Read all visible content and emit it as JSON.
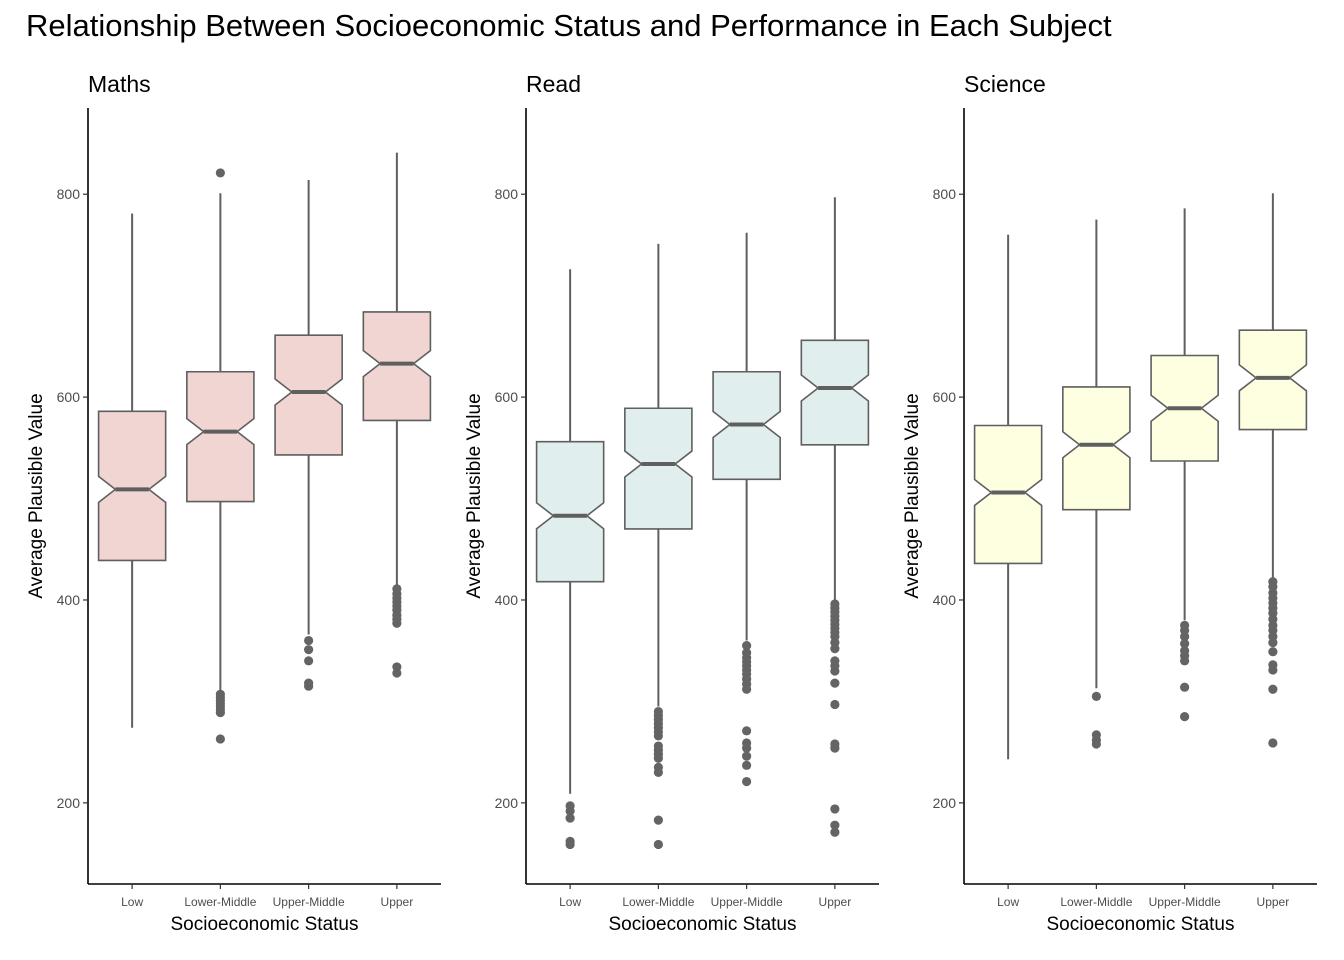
{
  "title": "Relationship Between Socioeconomic Status and Performance in Each Subject",
  "chart_data": [
    {
      "type": "boxplot",
      "panel_title": "Maths",
      "xlabel": "Socioeconomic Status",
      "ylabel": "Average Plausible Value",
      "categories": [
        "Low",
        "Lower-Middle",
        "Upper-Middle",
        "Upper"
      ],
      "ylim": [
        120,
        885
      ],
      "yticks": [
        200,
        400,
        600,
        800
      ],
      "notched": true,
      "fill_color": "#f0d5d3",
      "grid": false,
      "boxes": [
        {
          "category": "Low",
          "whisker_low": 274,
          "q1": 439,
          "median": 509,
          "q3": 586,
          "whisker_high": 781,
          "outliers": []
        },
        {
          "category": "Lower-Middle",
          "whisker_low": 309,
          "q1": 497,
          "median": 566,
          "q3": 625,
          "whisker_high": 801,
          "outliers": [
            821,
            307,
            304,
            301,
            298,
            295,
            292,
            289,
            263
          ]
        },
        {
          "category": "Upper-Middle",
          "whisker_low": 366,
          "q1": 543,
          "median": 605,
          "q3": 661,
          "whisker_high": 814,
          "outliers": [
            360,
            351,
            340,
            318,
            315
          ]
        },
        {
          "category": "Upper",
          "whisker_low": 415,
          "q1": 577,
          "median": 633,
          "q3": 684,
          "whisker_high": 841,
          "outliers": [
            411,
            406,
            402,
            398,
            394,
            390,
            385,
            381,
            377,
            334,
            328
          ]
        }
      ]
    },
    {
      "type": "boxplot",
      "panel_title": "Read",
      "xlabel": "Socioeconomic Status",
      "ylabel": "Average Plausible Value",
      "categories": [
        "Low",
        "Lower-Middle",
        "Upper-Middle",
        "Upper"
      ],
      "ylim": [
        120,
        885
      ],
      "yticks": [
        200,
        400,
        600,
        800
      ],
      "notched": true,
      "fill_color": "#e0eeee",
      "grid": false,
      "boxes": [
        {
          "category": "Low",
          "whisker_low": 209,
          "q1": 418,
          "median": 483,
          "q3": 556,
          "whisker_high": 726,
          "outliers": [
            197,
            192,
            185,
            162,
            159
          ]
        },
        {
          "category": "Lower-Middle",
          "whisker_low": 295,
          "q1": 470,
          "median": 534,
          "q3": 589,
          "whisker_high": 751,
          "outliers": [
            290,
            286,
            282,
            278,
            274,
            270,
            266,
            256,
            252,
            248,
            244,
            235,
            230,
            183,
            159
          ]
        },
        {
          "category": "Upper-Middle",
          "whisker_low": 360,
          "q1": 519,
          "median": 573,
          "q3": 625,
          "whisker_high": 762,
          "outliers": [
            355,
            348,
            343,
            339,
            335,
            331,
            327,
            322,
            317,
            312,
            271,
            259,
            254,
            246,
            237,
            221
          ]
        },
        {
          "category": "Upper",
          "whisker_low": 400,
          "q1": 553,
          "median": 609,
          "q3": 656,
          "whisker_high": 797,
          "outliers": [
            396,
            392,
            388,
            384,
            380,
            376,
            372,
            368,
            364,
            358,
            352,
            340,
            335,
            330,
            318,
            297,
            258,
            254,
            194,
            178,
            171
          ]
        }
      ]
    },
    {
      "type": "boxplot",
      "panel_title": "Science",
      "xlabel": "Socioeconomic Status",
      "ylabel": "Average Plausible Value",
      "categories": [
        "Low",
        "Lower-Middle",
        "Upper-Middle",
        "Upper"
      ],
      "ylim": [
        120,
        885
      ],
      "yticks": [
        200,
        400,
        600,
        800
      ],
      "notched": true,
      "fill_color": "#fefee0",
      "grid": false,
      "boxes": [
        {
          "category": "Low",
          "whisker_low": 243,
          "q1": 436,
          "median": 506,
          "q3": 572,
          "whisker_high": 760,
          "outliers": []
        },
        {
          "category": "Lower-Middle",
          "whisker_low": 313,
          "q1": 489,
          "median": 553,
          "q3": 610,
          "whisker_high": 775,
          "outliers": [
            305,
            267,
            262,
            258
          ]
        },
        {
          "category": "Upper-Middle",
          "whisker_low": 380,
          "q1": 537,
          "median": 589,
          "q3": 641,
          "whisker_high": 786,
          "outliers": [
            375,
            370,
            364,
            357,
            350,
            345,
            340,
            314,
            285
          ]
        },
        {
          "category": "Upper",
          "whisker_low": 422,
          "q1": 568,
          "median": 619,
          "q3": 666,
          "whisker_high": 801,
          "outliers": [
            418,
            413,
            407,
            402,
            397,
            392,
            387,
            381,
            375,
            370,
            364,
            358,
            349,
            336,
            331,
            312,
            259
          ]
        }
      ]
    }
  ]
}
